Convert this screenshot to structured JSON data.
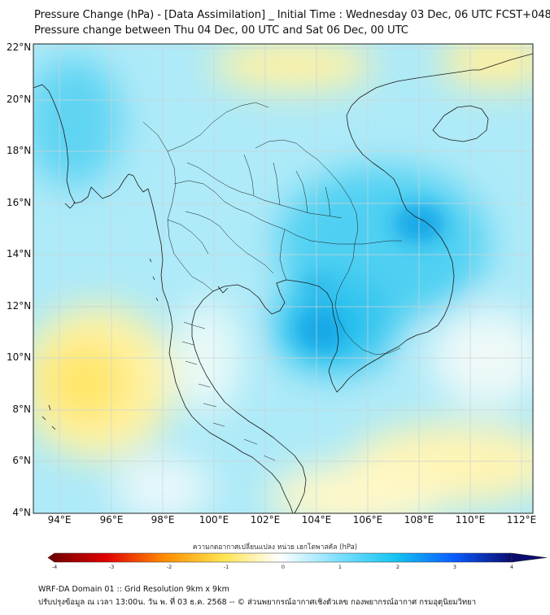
{
  "title_line1": "Pressure Change (hPa) - [Data Assimilation] _ Initial Time : Wednesday 03 Dec, 06 UTC FCST+048",
  "title_line2": "Pressure change between Thu 04 Dec, 00 UTC and Sat 06 Dec, 00 UTC",
  "lat_labels": [
    "22°N",
    "20°N",
    "18°N",
    "16°N",
    "14°N",
    "12°N",
    "10°N",
    "8°N",
    "6°N",
    "4°N"
  ],
  "lon_labels": [
    "94°E",
    "96°E",
    "98°E",
    "100°E",
    "102°E",
    "104°E",
    "106°E",
    "108°E",
    "110°E",
    "112°E"
  ],
  "colorbar": {
    "label": "ความกดอากาศเปลี่ยนแปลง หน่วย เฮกโตพาสคัล (hPa)",
    "min": -4,
    "max": 4,
    "ticks": [
      "-4",
      "-3",
      "-2",
      "-1",
      "0",
      "1",
      "2",
      "3",
      "4"
    ],
    "colors": {
      "neg4": "#6b0000",
      "neg3": "#e00000",
      "neg2": "#ff8c00",
      "neg1": "#ffe34d",
      "zero": "#ffffff",
      "pos1": "#7fe0ff",
      "pos2": "#14c4f0",
      "pos3": "#0a5cff",
      "pos4": "#0b0b6e"
    }
  },
  "footer_line1": "WRF-DA Domain 01 :: Grid Resolution 9km x 9km",
  "footer_line2": "ปรับปรุงข้อมูล ณ เวลา 13:00น. วัน พ. ที่ 03 ธ.ค. 2568 -- © ส่วนพยากรณ์อากาศเชิงตัวเลข กองพยากรณ์อากาศ กรมอุตุนิยมวิทยา"
}
